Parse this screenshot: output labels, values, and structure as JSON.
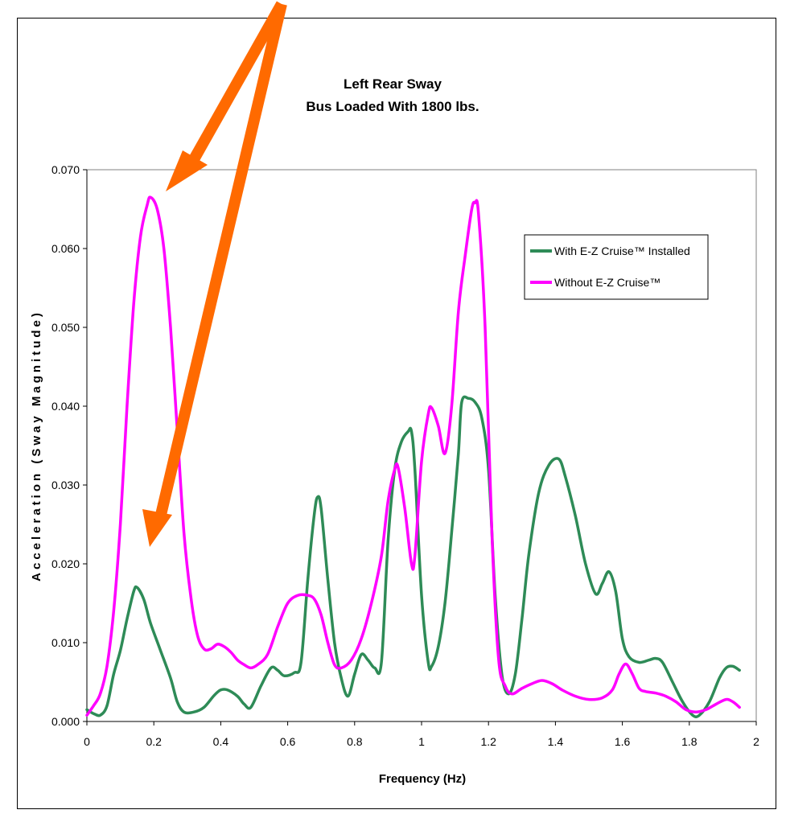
{
  "chart_data": {
    "type": "line",
    "title": "Left Rear Sway",
    "subtitle": "Bus Loaded With 1800 lbs.",
    "xlabel": "Frequency (Hz)",
    "ylabel": "Acceleration (Sway Magnitude)",
    "xlim": [
      0,
      2
    ],
    "ylim": [
      0,
      0.07
    ],
    "xticks": [
      "0",
      "0.2",
      "0.4",
      "0.6",
      "0.8",
      "1",
      "1.2",
      "1.4",
      "1.6",
      "1.8",
      "2"
    ],
    "yticks": [
      "0.000",
      "0.010",
      "0.020",
      "0.030",
      "0.040",
      "0.050",
      "0.060",
      "0.070"
    ],
    "grid": false,
    "legend_position": "top-right",
    "annotation": "orange arrows pointing to the 0.2 Hz peaks",
    "series": [
      {
        "name": "With E-Z Cruise™  Installed",
        "color": "#2e8b57",
        "points": [
          [
            0.0,
            0.0015
          ],
          [
            0.02,
            0.001
          ],
          [
            0.04,
            0.0008
          ],
          [
            0.06,
            0.002
          ],
          [
            0.08,
            0.006
          ],
          [
            0.1,
            0.009
          ],
          [
            0.12,
            0.013
          ],
          [
            0.14,
            0.0165
          ],
          [
            0.15,
            0.017
          ],
          [
            0.17,
            0.0155
          ],
          [
            0.19,
            0.0125
          ],
          [
            0.22,
            0.009
          ],
          [
            0.25,
            0.0055
          ],
          [
            0.27,
            0.0025
          ],
          [
            0.29,
            0.0012
          ],
          [
            0.32,
            0.0012
          ],
          [
            0.35,
            0.0018
          ],
          [
            0.38,
            0.0033
          ],
          [
            0.4,
            0.004
          ],
          [
            0.42,
            0.004
          ],
          [
            0.45,
            0.0032
          ],
          [
            0.47,
            0.0022
          ],
          [
            0.49,
            0.0018
          ],
          [
            0.52,
            0.0045
          ],
          [
            0.55,
            0.0068
          ],
          [
            0.57,
            0.0065
          ],
          [
            0.59,
            0.0058
          ],
          [
            0.62,
            0.0062
          ],
          [
            0.64,
            0.0075
          ],
          [
            0.66,
            0.018
          ],
          [
            0.68,
            0.0265
          ],
          [
            0.69,
            0.0285
          ],
          [
            0.7,
            0.027
          ],
          [
            0.72,
            0.018
          ],
          [
            0.74,
            0.01
          ],
          [
            0.76,
            0.0055
          ],
          [
            0.78,
            0.0032
          ],
          [
            0.8,
            0.006
          ],
          [
            0.82,
            0.0085
          ],
          [
            0.84,
            0.0078
          ],
          [
            0.86,
            0.0068
          ],
          [
            0.88,
            0.0075
          ],
          [
            0.9,
            0.023
          ],
          [
            0.92,
            0.032
          ],
          [
            0.94,
            0.0355
          ],
          [
            0.96,
            0.0368
          ],
          [
            0.97,
            0.0368
          ],
          [
            0.98,
            0.032
          ],
          [
            1.0,
            0.016
          ],
          [
            1.02,
            0.0075
          ],
          [
            1.03,
            0.007
          ],
          [
            1.05,
            0.0095
          ],
          [
            1.07,
            0.015
          ],
          [
            1.09,
            0.024
          ],
          [
            1.11,
            0.034
          ],
          [
            1.12,
            0.0405
          ],
          [
            1.14,
            0.041
          ],
          [
            1.16,
            0.0405
          ],
          [
            1.18,
            0.0385
          ],
          [
            1.2,
            0.032
          ],
          [
            1.22,
            0.016
          ],
          [
            1.24,
            0.006
          ],
          [
            1.26,
            0.0035
          ],
          [
            1.28,
            0.006
          ],
          [
            1.3,
            0.013
          ],
          [
            1.32,
            0.021
          ],
          [
            1.35,
            0.029
          ],
          [
            1.38,
            0.0325
          ],
          [
            1.41,
            0.0333
          ],
          [
            1.43,
            0.031
          ],
          [
            1.46,
            0.026
          ],
          [
            1.49,
            0.02
          ],
          [
            1.52,
            0.0162
          ],
          [
            1.54,
            0.0175
          ],
          [
            1.56,
            0.019
          ],
          [
            1.58,
            0.0165
          ],
          [
            1.6,
            0.0105
          ],
          [
            1.62,
            0.0082
          ],
          [
            1.65,
            0.0075
          ],
          [
            1.68,
            0.0078
          ],
          [
            1.7,
            0.008
          ],
          [
            1.72,
            0.0075
          ],
          [
            1.75,
            0.005
          ],
          [
            1.78,
            0.0025
          ],
          [
            1.81,
            0.0008
          ],
          [
            1.83,
            0.0008
          ],
          [
            1.86,
            0.0025
          ],
          [
            1.89,
            0.0055
          ],
          [
            1.91,
            0.0068
          ],
          [
            1.93,
            0.007
          ],
          [
            1.95,
            0.0065
          ]
        ]
      },
      {
        "name": "Without E-Z Cruise™",
        "color": "#ff00ff",
        "points": [
          [
            0.0,
            0.0008
          ],
          [
            0.02,
            0.002
          ],
          [
            0.04,
            0.0035
          ],
          [
            0.06,
            0.007
          ],
          [
            0.08,
            0.014
          ],
          [
            0.1,
            0.025
          ],
          [
            0.12,
            0.04
          ],
          [
            0.14,
            0.053
          ],
          [
            0.16,
            0.0615
          ],
          [
            0.18,
            0.0655
          ],
          [
            0.19,
            0.0665
          ],
          [
            0.21,
            0.065
          ],
          [
            0.23,
            0.06
          ],
          [
            0.25,
            0.05
          ],
          [
            0.27,
            0.037
          ],
          [
            0.29,
            0.024
          ],
          [
            0.31,
            0.016
          ],
          [
            0.33,
            0.011
          ],
          [
            0.35,
            0.0092
          ],
          [
            0.37,
            0.0092
          ],
          [
            0.39,
            0.0098
          ],
          [
            0.41,
            0.0095
          ],
          [
            0.43,
            0.0088
          ],
          [
            0.45,
            0.0078
          ],
          [
            0.47,
            0.0072
          ],
          [
            0.49,
            0.0068
          ],
          [
            0.51,
            0.0072
          ],
          [
            0.54,
            0.0085
          ],
          [
            0.57,
            0.012
          ],
          [
            0.6,
            0.015
          ],
          [
            0.63,
            0.016
          ],
          [
            0.66,
            0.016
          ],
          [
            0.68,
            0.0155
          ],
          [
            0.7,
            0.0135
          ],
          [
            0.72,
            0.01
          ],
          [
            0.74,
            0.0072
          ],
          [
            0.76,
            0.0068
          ],
          [
            0.79,
            0.0078
          ],
          [
            0.82,
            0.0105
          ],
          [
            0.85,
            0.015
          ],
          [
            0.88,
            0.021
          ],
          [
            0.9,
            0.028
          ],
          [
            0.92,
            0.032
          ],
          [
            0.93,
            0.0322
          ],
          [
            0.95,
            0.027
          ],
          [
            0.97,
            0.02
          ],
          [
            0.98,
            0.021
          ],
          [
            1.0,
            0.033
          ],
          [
            1.02,
            0.039
          ],
          [
            1.03,
            0.0398
          ],
          [
            1.05,
            0.0375
          ],
          [
            1.07,
            0.034
          ],
          [
            1.09,
            0.04
          ],
          [
            1.11,
            0.052
          ],
          [
            1.13,
            0.059
          ],
          [
            1.15,
            0.065
          ],
          [
            1.16,
            0.0658
          ],
          [
            1.17,
            0.0645
          ],
          [
            1.19,
            0.05
          ],
          [
            1.21,
            0.024
          ],
          [
            1.23,
            0.008
          ],
          [
            1.25,
            0.0045
          ],
          [
            1.27,
            0.0035
          ],
          [
            1.3,
            0.0042
          ],
          [
            1.33,
            0.0048
          ],
          [
            1.36,
            0.0052
          ],
          [
            1.39,
            0.0048
          ],
          [
            1.42,
            0.004
          ],
          [
            1.46,
            0.0032
          ],
          [
            1.5,
            0.0028
          ],
          [
            1.54,
            0.003
          ],
          [
            1.57,
            0.004
          ],
          [
            1.59,
            0.006
          ],
          [
            1.61,
            0.0073
          ],
          [
            1.63,
            0.006
          ],
          [
            1.65,
            0.0042
          ],
          [
            1.67,
            0.0038
          ],
          [
            1.7,
            0.0036
          ],
          [
            1.73,
            0.0032
          ],
          [
            1.76,
            0.0025
          ],
          [
            1.79,
            0.0015
          ],
          [
            1.82,
            0.0012
          ],
          [
            1.85,
            0.0015
          ],
          [
            1.88,
            0.0022
          ],
          [
            1.91,
            0.0028
          ],
          [
            1.93,
            0.0025
          ],
          [
            1.95,
            0.0018
          ]
        ]
      }
    ]
  },
  "colors": {
    "arrow": "#ff6a00"
  }
}
